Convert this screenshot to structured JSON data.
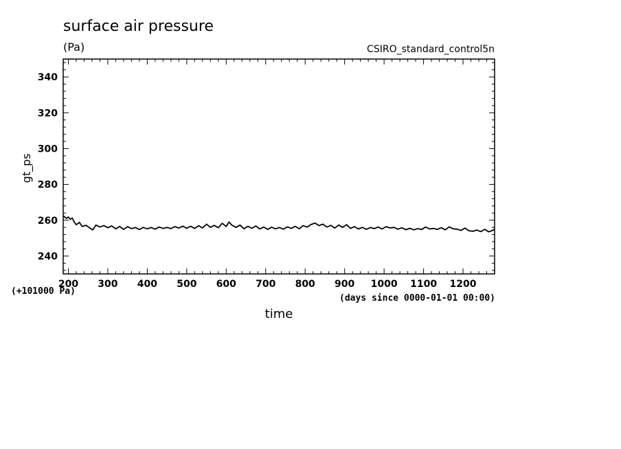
{
  "chart_data": {
    "type": "line",
    "title": "surface air pressure",
    "units": "(Pa)",
    "run_name": "CSIRO_standard_control5n",
    "xlabel": "time",
    "ylabel": "gt_ps",
    "x_note": "(days since 0000-01-01 00:00)",
    "y_offset_note": "(+101000 Pa)",
    "xlim": [
      187,
      1280
    ],
    "ylim": [
      230,
      350
    ],
    "x_ticks": [
      200,
      300,
      400,
      500,
      600,
      700,
      800,
      900,
      1000,
      1100,
      1200
    ],
    "y_ticks": [
      240,
      260,
      280,
      300,
      320,
      340
    ],
    "series": [
      {
        "name": "gt_ps",
        "x": [
          187,
          195,
          200,
          205,
          210,
          215,
          220,
          228,
          235,
          245,
          255,
          262,
          270,
          280,
          290,
          300,
          310,
          320,
          330,
          340,
          350,
          360,
          370,
          380,
          390,
          400,
          410,
          420,
          430,
          440,
          450,
          460,
          470,
          480,
          490,
          500,
          510,
          520,
          530,
          540,
          550,
          560,
          570,
          580,
          590,
          600,
          607,
          615,
          625,
          635,
          645,
          655,
          665,
          675,
          685,
          695,
          705,
          715,
          725,
          735,
          745,
          755,
          765,
          775,
          785,
          795,
          805,
          815,
          825,
          835,
          845,
          855,
          865,
          875,
          885,
          895,
          905,
          915,
          925,
          935,
          945,
          955,
          965,
          975,
          985,
          995,
          1005,
          1015,
          1025,
          1035,
          1045,
          1055,
          1065,
          1075,
          1085,
          1095,
          1105,
          1115,
          1125,
          1135,
          1145,
          1155,
          1165,
          1175,
          1185,
          1195,
          1205,
          1215,
          1225,
          1235,
          1245,
          1255,
          1265,
          1275,
          1280
        ],
        "values": [
          262.5,
          261.0,
          261.8,
          260.5,
          261.2,
          259.0,
          257.5,
          258.8,
          256.5,
          257.2,
          255.5,
          254.6,
          257.3,
          256.2,
          257.0,
          255.8,
          256.8,
          255.2,
          256.5,
          254.9,
          256.4,
          255.3,
          255.9,
          254.8,
          256.0,
          255.2,
          255.9,
          255.0,
          256.2,
          255.4,
          256.0,
          255.3,
          256.4,
          255.6,
          256.7,
          255.5,
          256.6,
          255.4,
          256.9,
          255.7,
          257.8,
          256.0,
          257.1,
          255.8,
          258.3,
          256.5,
          259.0,
          257.1,
          256.0,
          257.3,
          255.2,
          256.6,
          255.5,
          256.8,
          255.1,
          256.2,
          254.9,
          256.1,
          255.2,
          255.9,
          255.0,
          256.3,
          255.4,
          256.6,
          255.2,
          257.0,
          256.1,
          257.6,
          258.4,
          257.0,
          257.8,
          256.2,
          257.1,
          255.6,
          257.3,
          256.0,
          257.5,
          255.4,
          256.4,
          255.1,
          256.0,
          254.9,
          255.9,
          255.3,
          256.2,
          255.1,
          256.4,
          255.7,
          256.0,
          255.0,
          255.8,
          254.7,
          255.5,
          254.6,
          255.3,
          254.8,
          256.2,
          255.1,
          255.4,
          254.9,
          255.8,
          254.6,
          256.3,
          255.2,
          255.0,
          254.3,
          255.6,
          254.1,
          253.8,
          254.5,
          253.6,
          254.9,
          253.5,
          254.3,
          255.0
        ]
      }
    ]
  }
}
